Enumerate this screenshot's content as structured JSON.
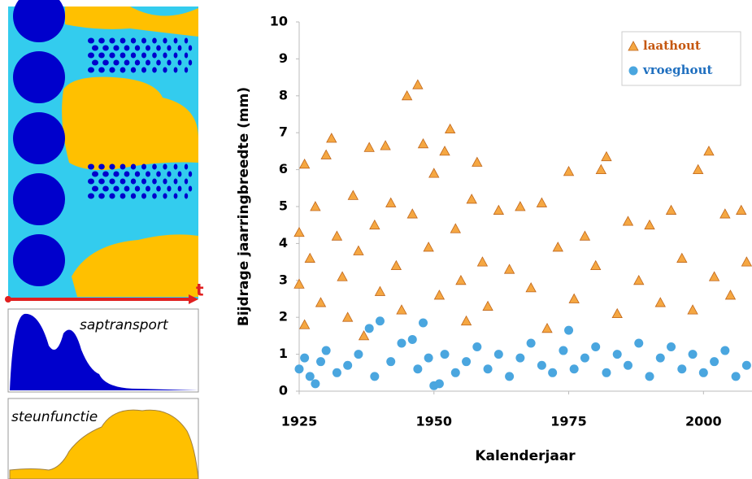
{
  "diagram": {
    "axis_label": "t",
    "panels": [
      "saptransport",
      "steunfunctie"
    ]
  },
  "chart_data": {
    "type": "scatter",
    "xlabel": "Kalenderjaar",
    "ylabel": "Bijdrage jaarringbreedte (mm)",
    "xlim": [
      1925,
      2009
    ],
    "xticks": [
      1925,
      1950,
      1975,
      2000
    ],
    "ylim": [
      0,
      10
    ],
    "yticks": [
      0,
      1,
      2,
      3,
      4,
      5,
      6,
      7,
      8,
      9,
      10
    ],
    "grid": false,
    "legend": "upper right",
    "series": [
      {
        "name": "laathout",
        "color": "#f5a742",
        "marker": "triangle",
        "x": [
          1925,
          1925,
          1926,
          1926,
          1927,
          1928,
          1929,
          1930,
          1931,
          1932,
          1933,
          1934,
          1935,
          1936,
          1937,
          1938,
          1939,
          1940,
          1941,
          1942,
          1943,
          1944,
          1945,
          1946,
          1947,
          1948,
          1949,
          1950,
          1951,
          1952,
          1953,
          1954,
          1955,
          1956,
          1957,
          1958,
          1959,
          1960,
          1962,
          1964,
          1966,
          1968,
          1970,
          1971,
          1973,
          1975,
          1976,
          1978,
          1980,
          1981,
          1982,
          1984,
          1986,
          1988,
          1990,
          1992,
          1994,
          1996,
          1998,
          1999,
          2001,
          2002,
          2004,
          2005,
          2007,
          2008
        ],
        "values": [
          4.3,
          2.9,
          6.15,
          1.8,
          3.6,
          5.0,
          2.4,
          6.4,
          6.85,
          4.2,
          3.1,
          2.0,
          5.3,
          3.8,
          1.5,
          6.6,
          4.5,
          2.7,
          6.65,
          5.1,
          3.4,
          2.2,
          8.0,
          4.8,
          8.3,
          6.7,
          3.9,
          5.9,
          2.6,
          6.5,
          7.1,
          4.4,
          3.0,
          1.9,
          5.2,
          6.2,
          3.5,
          2.3,
          4.9,
          3.3,
          5.0,
          2.8,
          5.1,
          1.7,
          3.9,
          5.95,
          2.5,
          4.2,
          3.4,
          6.0,
          6.35,
          2.1,
          4.6,
          3.0,
          4.5,
          2.4,
          4.9,
          3.6,
          2.2,
          6.0,
          6.5,
          3.1,
          4.8,
          2.6,
          4.9,
          3.5
        ]
      },
      {
        "name": "vroeghout",
        "color": "#4aa6df",
        "marker": "circle",
        "x": [
          1925,
          1926,
          1927,
          1928,
          1929,
          1930,
          1932,
          1934,
          1936,
          1938,
          1939,
          1940,
          1942,
          1944,
          1946,
          1947,
          1948,
          1949,
          1950,
          1951,
          1952,
          1954,
          1956,
          1958,
          1960,
          1962,
          1964,
          1966,
          1968,
          1970,
          1972,
          1974,
          1975,
          1976,
          1978,
          1980,
          1982,
          1984,
          1986,
          1988,
          1990,
          1992,
          1994,
          1996,
          1998,
          2000,
          2002,
          2004,
          2006,
          2008
        ],
        "values": [
          0.6,
          0.9,
          0.4,
          0.2,
          0.8,
          1.1,
          0.5,
          0.7,
          1.0,
          1.7,
          0.4,
          1.9,
          0.8,
          1.3,
          1.4,
          0.6,
          1.85,
          0.9,
          0.15,
          0.2,
          1.0,
          0.5,
          0.8,
          1.2,
          0.6,
          1.0,
          0.4,
          0.9,
          1.3,
          0.7,
          0.5,
          1.1,
          1.65,
          0.6,
          0.9,
          1.2,
          0.5,
          1.0,
          0.7,
          1.3,
          0.4,
          0.9,
          1.2,
          0.6,
          1.0,
          0.5,
          0.8,
          1.1,
          0.4,
          0.7
        ]
      }
    ]
  }
}
